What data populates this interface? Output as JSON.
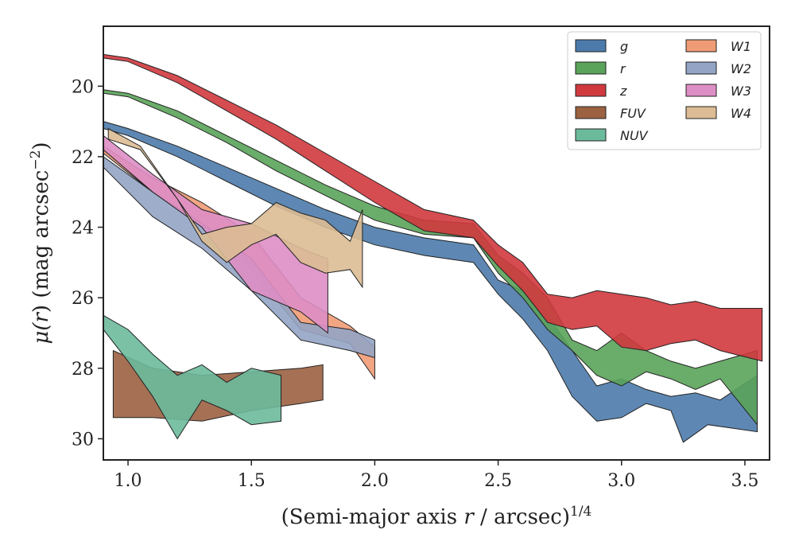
{
  "chart_data": {
    "type": "area",
    "xlabel_prefix": "(Semi-major axis ",
    "xlabel_var": "r",
    "xlabel_mid": " / arcsec)",
    "xlabel_sup": "1/4",
    "ylabel_prefix": "μ(",
    "ylabel_var": "r",
    "ylabel_mid": ") (mag arcsec",
    "ylabel_sup": "−2",
    "ylabel_suffix": ")",
    "xlim": [
      0.9,
      3.6
    ],
    "ylim": [
      30.6,
      18.3
    ],
    "y_inverted": true,
    "xticks": [
      "1.0",
      "1.5",
      "2.0",
      "2.5",
      "3.0",
      "3.5"
    ],
    "xtick_values": [
      1.0,
      1.5,
      2.0,
      2.5,
      3.0,
      3.5
    ],
    "yticks": [
      "20",
      "22",
      "24",
      "26",
      "28",
      "30"
    ],
    "ytick_values": [
      20,
      22,
      24,
      26,
      28,
      30
    ],
    "grid": false,
    "legend_position": "top-right",
    "legend_columns": 2,
    "series": [
      {
        "name": "g",
        "color": "#4c7bab",
        "upper": [
          [
            0.9,
            21.0
          ],
          [
            1.0,
            21.2
          ],
          [
            1.2,
            21.7
          ],
          [
            1.4,
            22.3
          ],
          [
            1.6,
            22.9
          ],
          [
            1.8,
            23.5
          ],
          [
            2.0,
            24.0
          ],
          [
            2.2,
            24.3
          ],
          [
            2.4,
            24.5
          ],
          [
            2.5,
            25.5
          ],
          [
            2.6,
            25.8
          ],
          [
            2.7,
            26.5
          ],
          [
            2.8,
            27.5
          ],
          [
            2.9,
            28.5
          ],
          [
            3.0,
            28.3
          ],
          [
            3.1,
            28.6
          ],
          [
            3.2,
            28.8
          ],
          [
            3.3,
            28.7
          ],
          [
            3.4,
            28.9
          ],
          [
            3.55,
            28.2
          ]
        ],
        "lower": [
          [
            0.9,
            21.2
          ],
          [
            1.0,
            21.4
          ],
          [
            1.2,
            22.0
          ],
          [
            1.4,
            22.7
          ],
          [
            1.6,
            23.4
          ],
          [
            1.8,
            24.0
          ],
          [
            2.0,
            24.5
          ],
          [
            2.2,
            24.8
          ],
          [
            2.4,
            25.0
          ],
          [
            2.5,
            25.9
          ],
          [
            2.6,
            26.6
          ],
          [
            2.7,
            27.5
          ],
          [
            2.8,
            28.8
          ],
          [
            2.9,
            29.5
          ],
          [
            3.0,
            29.4
          ],
          [
            3.1,
            29.0
          ],
          [
            3.2,
            29.2
          ],
          [
            3.25,
            30.1
          ],
          [
            3.35,
            29.6
          ],
          [
            3.55,
            29.8
          ]
        ]
      },
      {
        "name": "r",
        "color": "#5aa35a",
        "upper": [
          [
            0.9,
            20.1
          ],
          [
            1.0,
            20.2
          ],
          [
            1.2,
            20.7
          ],
          [
            1.4,
            21.4
          ],
          [
            1.6,
            22.1
          ],
          [
            1.8,
            22.8
          ],
          [
            2.0,
            23.4
          ],
          [
            2.2,
            23.8
          ],
          [
            2.4,
            23.9
          ],
          [
            2.5,
            24.8
          ],
          [
            2.6,
            25.3
          ],
          [
            2.7,
            26.0
          ],
          [
            2.8,
            27.2
          ],
          [
            2.9,
            27.5
          ],
          [
            3.0,
            27.0
          ],
          [
            3.1,
            27.5
          ],
          [
            3.2,
            27.8
          ],
          [
            3.3,
            28.0
          ],
          [
            3.4,
            27.8
          ],
          [
            3.55,
            27.5
          ]
        ],
        "lower": [
          [
            0.9,
            20.2
          ],
          [
            1.0,
            20.3
          ],
          [
            1.2,
            20.9
          ],
          [
            1.4,
            21.6
          ],
          [
            1.6,
            22.4
          ],
          [
            1.8,
            23.1
          ],
          [
            2.0,
            23.8
          ],
          [
            2.2,
            24.2
          ],
          [
            2.4,
            24.3
          ],
          [
            2.5,
            25.3
          ],
          [
            2.6,
            26.0
          ],
          [
            2.7,
            26.9
          ],
          [
            2.8,
            27.5
          ],
          [
            2.9,
            28.2
          ],
          [
            3.0,
            28.5
          ],
          [
            3.1,
            28.1
          ],
          [
            3.2,
            28.3
          ],
          [
            3.3,
            28.6
          ],
          [
            3.4,
            28.3
          ],
          [
            3.55,
            29.6
          ]
        ]
      },
      {
        "name": "z",
        "color": "#d0393e",
        "upper": [
          [
            0.9,
            19.1
          ],
          [
            1.0,
            19.2
          ],
          [
            1.2,
            19.7
          ],
          [
            1.4,
            20.4
          ],
          [
            1.6,
            21.1
          ],
          [
            1.8,
            21.9
          ],
          [
            2.0,
            22.7
          ],
          [
            2.2,
            23.5
          ],
          [
            2.4,
            23.8
          ],
          [
            2.5,
            24.5
          ],
          [
            2.6,
            25.0
          ],
          [
            2.7,
            25.9
          ],
          [
            2.8,
            26.0
          ],
          [
            2.9,
            25.8
          ],
          [
            3.0,
            25.9
          ],
          [
            3.1,
            26.0
          ],
          [
            3.2,
            26.2
          ],
          [
            3.3,
            26.1
          ],
          [
            3.4,
            26.3
          ],
          [
            3.57,
            26.3
          ]
        ],
        "lower": [
          [
            0.9,
            19.2
          ],
          [
            1.0,
            19.3
          ],
          [
            1.2,
            19.9
          ],
          [
            1.4,
            20.7
          ],
          [
            1.6,
            21.5
          ],
          [
            1.8,
            22.4
          ],
          [
            2.0,
            23.3
          ],
          [
            2.2,
            24.1
          ],
          [
            2.4,
            24.3
          ],
          [
            2.5,
            25.1
          ],
          [
            2.6,
            25.8
          ],
          [
            2.7,
            26.7
          ],
          [
            2.8,
            26.9
          ],
          [
            2.9,
            26.8
          ],
          [
            3.0,
            27.4
          ],
          [
            3.1,
            27.5
          ],
          [
            3.2,
            27.3
          ],
          [
            3.3,
            27.2
          ],
          [
            3.4,
            27.5
          ],
          [
            3.57,
            27.8
          ]
        ]
      },
      {
        "name": "FUV",
        "color": "#9b6141",
        "upper": [
          [
            0.94,
            27.5
          ],
          [
            1.1,
            28.0
          ],
          [
            1.3,
            28.2
          ],
          [
            1.5,
            28.1
          ],
          [
            1.7,
            28.0
          ],
          [
            1.79,
            27.9
          ]
        ],
        "lower": [
          [
            0.94,
            29.4
          ],
          [
            1.1,
            29.4
          ],
          [
            1.3,
            29.5
          ],
          [
            1.5,
            29.2
          ],
          [
            1.7,
            29.0
          ],
          [
            1.79,
            28.9
          ]
        ]
      },
      {
        "name": "NUV",
        "color": "#6cba9c",
        "upper": [
          [
            0.9,
            26.5
          ],
          [
            1.0,
            26.9
          ],
          [
            1.1,
            27.6
          ],
          [
            1.2,
            28.2
          ],
          [
            1.3,
            27.9
          ],
          [
            1.4,
            28.4
          ],
          [
            1.5,
            28.0
          ],
          [
            1.62,
            28.2
          ]
        ],
        "lower": [
          [
            0.9,
            26.9
          ],
          [
            1.0,
            27.8
          ],
          [
            1.1,
            28.8
          ],
          [
            1.2,
            30.0
          ],
          [
            1.3,
            28.9
          ],
          [
            1.4,
            29.2
          ],
          [
            1.5,
            29.6
          ],
          [
            1.62,
            29.5
          ]
        ]
      },
      {
        "name": "W1",
        "color": "#ef9b76",
        "upper": [
          [
            0.9,
            21.7
          ],
          [
            1.1,
            22.6
          ],
          [
            1.3,
            23.3
          ],
          [
            1.5,
            24.2
          ],
          [
            1.7,
            26.0
          ],
          [
            1.9,
            26.8
          ],
          [
            2.0,
            27.4
          ]
        ],
        "lower": [
          [
            0.9,
            21.9
          ],
          [
            1.1,
            23.0
          ],
          [
            1.3,
            23.9
          ],
          [
            1.5,
            25.2
          ],
          [
            1.7,
            26.9
          ],
          [
            1.9,
            27.3
          ],
          [
            2.0,
            28.3
          ]
        ]
      },
      {
        "name": "W2",
        "color": "#93a4c4",
        "upper": [
          [
            0.9,
            22.0
          ],
          [
            1.1,
            23.0
          ],
          [
            1.3,
            23.9
          ],
          [
            1.5,
            24.9
          ],
          [
            1.7,
            26.7
          ],
          [
            1.9,
            26.9
          ],
          [
            2.0,
            27.2
          ]
        ],
        "lower": [
          [
            0.9,
            22.3
          ],
          [
            1.1,
            23.7
          ],
          [
            1.3,
            24.6
          ],
          [
            1.5,
            25.8
          ],
          [
            1.7,
            27.2
          ],
          [
            1.9,
            27.5
          ],
          [
            2.0,
            27.7
          ]
        ]
      },
      {
        "name": "W3",
        "color": "#dd8ec4",
        "upper": [
          [
            0.9,
            21.4
          ],
          [
            1.1,
            22.5
          ],
          [
            1.3,
            23.5
          ],
          [
            1.5,
            23.9
          ],
          [
            1.7,
            24.6
          ],
          [
            1.81,
            24.9
          ]
        ],
        "lower": [
          [
            0.9,
            21.8
          ],
          [
            1.1,
            23.0
          ],
          [
            1.3,
            24.0
          ],
          [
            1.5,
            25.8
          ],
          [
            1.7,
            26.4
          ],
          [
            1.81,
            27.0
          ]
        ]
      },
      {
        "name": "W4",
        "color": "#dcbc94",
        "upper": [
          [
            0.92,
            21.2
          ],
          [
            1.05,
            21.7
          ],
          [
            1.2,
            23.2
          ],
          [
            1.3,
            24.2
          ],
          [
            1.4,
            24.0
          ],
          [
            1.5,
            23.9
          ],
          [
            1.6,
            23.3
          ],
          [
            1.7,
            23.6
          ],
          [
            1.8,
            23.8
          ],
          [
            1.9,
            24.4
          ],
          [
            1.95,
            23.5
          ]
        ],
        "lower": [
          [
            0.92,
            21.5
          ],
          [
            1.05,
            21.8
          ],
          [
            1.2,
            23.2
          ],
          [
            1.3,
            24.4
          ],
          [
            1.4,
            25.0
          ],
          [
            1.5,
            24.5
          ],
          [
            1.6,
            24.2
          ],
          [
            1.7,
            25.0
          ],
          [
            1.8,
            25.3
          ],
          [
            1.9,
            25.2
          ],
          [
            1.95,
            25.7
          ]
        ]
      }
    ]
  }
}
